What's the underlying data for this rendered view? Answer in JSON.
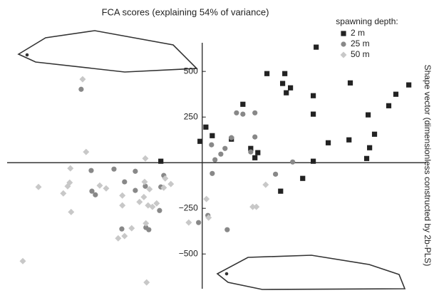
{
  "chart_data": {
    "type": "scatter",
    "title": "FCA scores (explaining 54% of variance)",
    "y_label": "Shape vector (dimensionless constructed by 2b-PLS)",
    "legend_title": "spawning depth:",
    "legend": "upper right",
    "xlim": [
      -1070,
      1150
    ],
    "ylim": [
      -710,
      735
    ],
    "yticks": [
      {
        "value": -500,
        "label": "−500"
      },
      {
        "value": -250,
        "label": "−250"
      },
      250,
      500
    ],
    "series": [
      {
        "name": "2 m",
        "color": "#222222",
        "marker": "square",
        "x": [
          625,
          355,
          453,
          484,
          1133,
          1062,
          812,
          1023,
          441,
          461,
          223,
          20,
          55,
          160,
          -12,
          805,
          945,
          266,
          609,
          609,
          305,
          289,
          691,
          609,
          551,
          430,
          918,
          902,
          -227,
          910
        ],
        "y": [
          633,
          488,
          488,
          410,
          426,
          375,
          437,
          312,
          434,
          383,
          320,
          195,
          148,
          129,
          117,
          125,
          156,
          78,
          367,
          266,
          55,
          27,
          109,
          8,
          -86,
          -156,
          82,
          23,
          8,
          262
        ]
      },
      {
        "name": "25 m",
        "color": "#888888",
        "marker": "circle",
        "x": [
          -664,
          188,
          223,
          289,
          289,
          160,
          51,
          125,
          102,
          266,
          70,
          402,
          496,
          -211,
          55,
          -367,
          -484,
          -609,
          -605,
          -586,
          -426,
          -367,
          -312,
          -227,
          -234,
          -441,
          -293,
          -309,
          137,
          31,
          -20
        ],
        "y": [
          402,
          273,
          266,
          273,
          141,
          137,
          98,
          78,
          47,
          59,
          16,
          -63,
          4,
          -70,
          -59,
          -47,
          -35,
          -43,
          -156,
          -176,
          -105,
          -152,
          -129,
          -133,
          -262,
          -363,
          -367,
          -355,
          -367,
          -289,
          -328
        ]
      },
      {
        "name": "50 m",
        "color": "#c8c8c8",
        "marker": "diamond",
        "x": [
          -656,
          -637,
          -723,
          -898,
          -727,
          -738,
          -762,
          -719,
          -562,
          -527,
          -438,
          -438,
          -316,
          -289,
          -320,
          -344,
          -297,
          -387,
          -461,
          -426,
          -309,
          -305,
          -984,
          -250,
          -273,
          -211,
          -203,
          -172,
          23,
          -74,
          35,
          277,
          297,
          348,
          -312
        ],
        "y": [
          457,
          59,
          -31,
          -133,
          -109,
          -129,
          -168,
          -270,
          -125,
          -141,
          -180,
          -234,
          -105,
          -145,
          -188,
          -215,
          -234,
          -359,
          -414,
          -402,
          -332,
          -656,
          -539,
          -223,
          -242,
          -137,
          -86,
          -117,
          -199,
          -328,
          -301,
          -242,
          -242,
          -121,
          23
        ]
      }
    ]
  }
}
